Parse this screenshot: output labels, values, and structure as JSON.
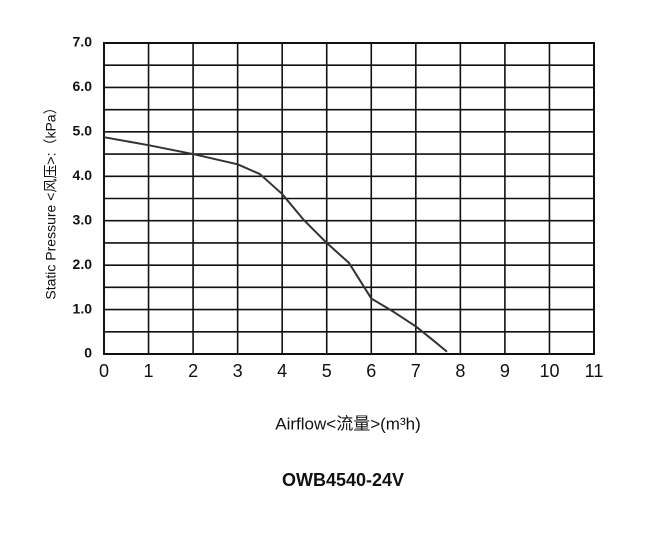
{
  "chart_data": {
    "type": "line",
    "title": "OWB4540-24V",
    "x_label": "Airflow<流量>(m³h)",
    "y_label": "Static  Pressure <风压>:（kPa）",
    "x": [
      0,
      1,
      2,
      3,
      3.5,
      4,
      4.5,
      5,
      5.5,
      6,
      6.5,
      7,
      7.4,
      7.7
    ],
    "series": [
      {
        "color": "#333333",
        "values": [
          4.88,
          4.7,
          4.5,
          4.27,
          4.05,
          3.6,
          3.0,
          2.5,
          2.05,
          1.25,
          0.95,
          0.62,
          0.3,
          0.05
        ]
      }
    ],
    "xlim": [
      0,
      11
    ],
    "xticks": [
      0,
      1,
      2,
      3,
      4,
      5,
      6,
      7,
      8,
      9,
      10,
      11
    ],
    "ylim": [
      0,
      7
    ],
    "yticks": [
      0,
      {
        "value": 1,
        "label": "1.0"
      },
      {
        "value": 2,
        "label": "2.0"
      },
      {
        "value": 3,
        "label": "3.0"
      },
      {
        "value": 4,
        "label": "4.0"
      },
      {
        "value": 5,
        "label": "5.0"
      },
      {
        "value": 6,
        "label": "6.0"
      },
      {
        "value": 7,
        "label": "7.0"
      }
    ],
    "yminor": [
      0.5,
      1.5,
      2.5,
      3.5,
      4.5,
      5.5,
      6.5
    ],
    "grid": true
  }
}
